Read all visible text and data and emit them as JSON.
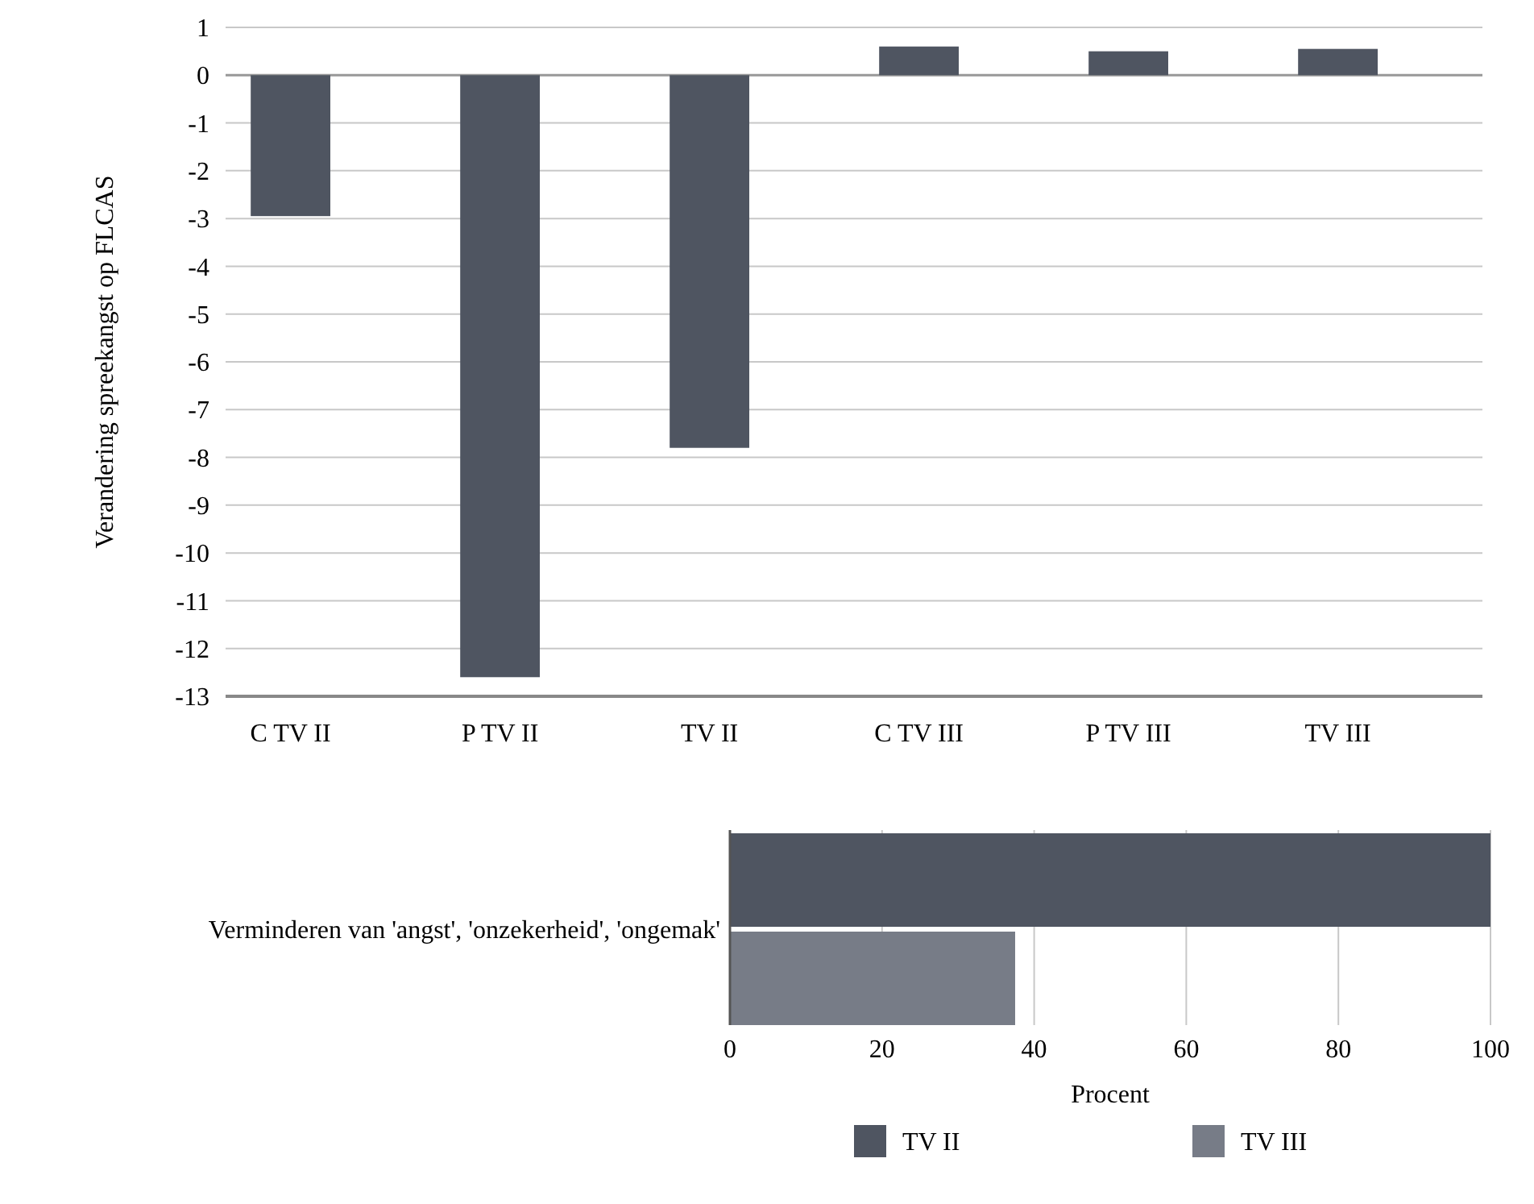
{
  "chart_data": [
    {
      "type": "bar",
      "ylabel": "Verandering spreekangst op FLCAS",
      "categories": [
        "C TV II",
        "P TV II",
        "TV II",
        "C TV III",
        "P TV III",
        "TV III"
      ],
      "values": [
        -2.95,
        -12.6,
        -7.8,
        0.6,
        0.5,
        0.55
      ],
      "color": "#4f5561",
      "ylim": [
        -13,
        1
      ],
      "yticks": [
        -13,
        -12,
        -11,
        -10,
        -9,
        -8,
        -7,
        -6,
        -5,
        -4,
        -3,
        -2,
        -1,
        0,
        1
      ],
      "grid": "y"
    },
    {
      "type": "bar",
      "orientation": "horizontal",
      "xlabel": "Procent",
      "categories": [
        "Verminderen van 'angst', 'onzekerheid',  'ongemak'"
      ],
      "series": [
        {
          "name": "TV II",
          "color": "#4f5561",
          "values": [
            100
          ]
        },
        {
          "name": "TV III",
          "color": "#777c87",
          "values": [
            37.5
          ]
        }
      ],
      "xlim": [
        0,
        100
      ],
      "xticks": [
        0,
        20,
        40,
        60,
        80,
        100
      ],
      "grid": "x",
      "legend": "bottom"
    }
  ]
}
